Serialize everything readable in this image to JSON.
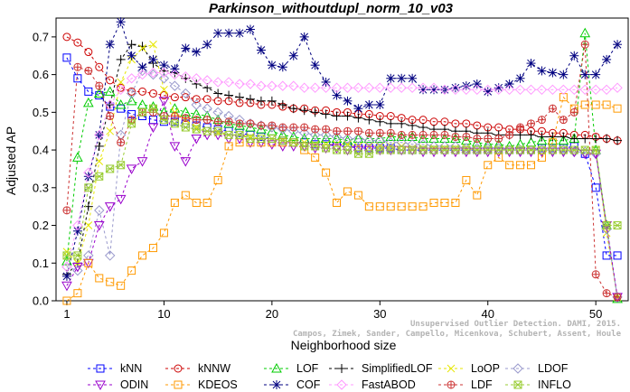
{
  "chart_data": {
    "type": "line",
    "title": "Parkinson_withoutdupl_norm_10_v03",
    "xlabel": "Neighborhood size",
    "ylabel": "Adjusted AP",
    "xlim": [
      0,
      53
    ],
    "ylim": [
      0,
      0.75
    ],
    "xticks": [
      1,
      10,
      20,
      30,
      40,
      50
    ],
    "yticks": [
      0.0,
      0.1,
      0.2,
      0.3,
      0.4,
      0.5,
      0.6,
      0.7
    ],
    "grid": false,
    "legend_position": "bottom",
    "x": [
      1,
      2,
      3,
      4,
      5,
      6,
      7,
      8,
      9,
      10,
      11,
      12,
      13,
      14,
      15,
      16,
      17,
      18,
      19,
      20,
      21,
      22,
      23,
      24,
      25,
      26,
      27,
      28,
      29,
      30,
      31,
      32,
      33,
      34,
      35,
      36,
      37,
      38,
      39,
      40,
      41,
      42,
      43,
      44,
      45,
      46,
      47,
      48,
      49,
      50,
      51,
      52
    ],
    "series": [
      {
        "name": "kNN",
        "color": "#0000ff",
        "marker": "square",
        "values": [
          0.645,
          0.59,
          0.555,
          0.545,
          0.515,
          0.51,
          0.495,
          0.49,
          0.48,
          0.475,
          0.475,
          0.47,
          0.465,
          0.46,
          0.455,
          0.45,
          0.445,
          0.44,
          0.435,
          0.43,
          0.425,
          0.42,
          0.42,
          0.415,
          0.415,
          0.41,
          0.41,
          0.405,
          0.405,
          0.405,
          0.405,
          0.4,
          0.4,
          0.4,
          0.4,
          0.4,
          0.4,
          0.4,
          0.4,
          0.4,
          0.4,
          0.4,
          0.4,
          0.4,
          0.405,
          0.405,
          0.405,
          0.41,
          0.39,
          0.3,
          0.12,
          0.12
        ]
      },
      {
        "name": "kNNW",
        "color": "#cc0000",
        "marker": "circle",
        "values": [
          0.7,
          0.685,
          0.66,
          0.62,
          0.585,
          0.565,
          0.555,
          0.555,
          0.55,
          0.545,
          0.54,
          0.54,
          0.535,
          0.535,
          0.53,
          0.53,
          0.525,
          0.525,
          0.52,
          0.52,
          0.515,
          0.51,
          0.51,
          0.505,
          0.505,
          0.5,
          0.5,
          0.495,
          0.495,
          0.49,
          0.49,
          0.485,
          0.48,
          0.48,
          0.475,
          0.475,
          0.47,
          0.47,
          0.465,
          0.46,
          0.46,
          0.455,
          0.455,
          0.45,
          0.45,
          0.445,
          0.445,
          0.44,
          0.44,
          0.435,
          0.43,
          0.425
        ]
      },
      {
        "name": "LOF",
        "color": "#00cc00",
        "marker": "triangle-up",
        "values": [
          0.105,
          0.38,
          0.525,
          0.55,
          0.555,
          0.52,
          0.53,
          0.52,
          0.515,
          0.5,
          0.51,
          0.5,
          0.495,
          0.49,
          0.48,
          0.47,
          0.465,
          0.46,
          0.455,
          0.45,
          0.44,
          0.435,
          0.43,
          0.43,
          0.43,
          0.43,
          0.425,
          0.43,
          0.43,
          0.43,
          0.435,
          0.435,
          0.435,
          0.43,
          0.43,
          0.43,
          0.43,
          0.425,
          0.42,
          0.415,
          0.415,
          0.41,
          0.415,
          0.42,
          0.425,
          0.425,
          0.425,
          0.43,
          0.71,
          0.4,
          0.2,
          0.005
        ]
      },
      {
        "name": "SimplifiedLOF",
        "color": "#000000",
        "marker": "plus",
        "values": [
          0.07,
          0.1,
          0.25,
          0.41,
          0.52,
          0.64,
          0.68,
          0.675,
          0.63,
          0.61,
          0.605,
          0.59,
          0.575,
          0.565,
          0.55,
          0.545,
          0.54,
          0.535,
          0.53,
          0.53,
          0.52,
          0.51,
          0.505,
          0.5,
          0.495,
          0.49,
          0.49,
          0.485,
          0.48,
          0.475,
          0.47,
          0.47,
          0.465,
          0.46,
          0.455,
          0.455,
          0.45,
          0.45,
          0.445,
          0.445,
          0.44,
          0.44,
          0.44,
          0.44,
          0.435,
          0.435,
          0.435,
          0.43,
          0.43,
          0.43,
          0.43,
          0.425
        ]
      },
      {
        "name": "LoOP",
        "color": "#e6e600",
        "marker": "x",
        "values": [
          0.13,
          0.1,
          0.2,
          0.37,
          0.45,
          0.58,
          0.64,
          0.67,
          0.68,
          0.56,
          0.5,
          0.48,
          0.46,
          0.45,
          0.445,
          0.44,
          0.44,
          0.435,
          0.43,
          0.43,
          0.425,
          0.42,
          0.42,
          0.415,
          0.415,
          0.415,
          0.415,
          0.41,
          0.41,
          0.41,
          0.41,
          0.41,
          0.405,
          0.405,
          0.405,
          0.405,
          0.405,
          0.405,
          0.4,
          0.4,
          0.4,
          0.4,
          0.4,
          0.4,
          0.4,
          0.4,
          0.4,
          0.4,
          0.4,
          0.4,
          0.18,
          0.01
        ]
      },
      {
        "name": "LDOF",
        "color": "#9999cc",
        "marker": "diamond",
        "values": [
          0.09,
          0.08,
          0.12,
          0.24,
          0.12,
          0.44,
          0.55,
          0.61,
          0.6,
          0.59,
          0.57,
          0.55,
          0.52,
          0.51,
          0.5,
          0.49,
          0.48,
          0.47,
          0.465,
          0.46,
          0.455,
          0.45,
          0.445,
          0.44,
          0.44,
          0.435,
          0.43,
          0.43,
          0.425,
          0.425,
          0.42,
          0.42,
          0.415,
          0.415,
          0.41,
          0.41,
          0.41,
          0.405,
          0.405,
          0.405,
          0.405,
          0.4,
          0.4,
          0.4,
          0.4,
          0.4,
          0.4,
          0.395,
          0.395,
          0.39,
          0.19,
          0.01
        ]
      },
      {
        "name": "ODIN",
        "color": "#9900cc",
        "marker": "triangle-down",
        "values": [
          0.04,
          0.09,
          0.1,
          0.2,
          0.25,
          0.27,
          0.35,
          0.37,
          0.46,
          0.53,
          0.41,
          0.37,
          0.43,
          0.44,
          0.44,
          0.43,
          0.43,
          0.42,
          0.42,
          0.415,
          0.41,
          0.41,
          0.41,
          0.405,
          0.405,
          0.405,
          0.4,
          0.4,
          0.4,
          0.4,
          0.4,
          0.4,
          0.4,
          0.395,
          0.395,
          0.395,
          0.395,
          0.395,
          0.395,
          0.395,
          0.395,
          0.395,
          0.395,
          0.395,
          0.395,
          0.395,
          0.395,
          0.395,
          0.39,
          0.39,
          0.2,
          0.01
        ]
      },
      {
        "name": "KDEOS",
        "color": "#ff9900",
        "marker": "square",
        "values": [
          0.0,
          0.02,
          0.1,
          0.06,
          0.05,
          0.04,
          0.08,
          0.12,
          0.14,
          0.18,
          0.26,
          0.28,
          0.26,
          0.26,
          0.32,
          0.41,
          0.42,
          0.42,
          0.42,
          0.42,
          0.42,
          0.42,
          0.4,
          0.38,
          0.34,
          0.26,
          0.29,
          0.28,
          0.25,
          0.25,
          0.25,
          0.25,
          0.25,
          0.25,
          0.26,
          0.26,
          0.26,
          0.32,
          0.28,
          0.36,
          0.38,
          0.36,
          0.36,
          0.36,
          0.38,
          0.42,
          0.54,
          0.51,
          0.52,
          0.52,
          0.52,
          0.51
        ]
      },
      {
        "name": "COF",
        "color": "#000080",
        "marker": "asterisk",
        "values": [
          0.065,
          0.185,
          0.33,
          0.44,
          0.68,
          0.74,
          0.65,
          0.62,
          0.64,
          0.625,
          0.615,
          0.67,
          0.66,
          0.68,
          0.71,
          0.71,
          0.71,
          0.72,
          0.665,
          0.625,
          0.62,
          0.65,
          0.7,
          0.625,
          0.58,
          0.545,
          0.53,
          0.51,
          0.52,
          0.52,
          0.59,
          0.59,
          0.59,
          0.56,
          0.56,
          0.56,
          0.565,
          0.57,
          0.575,
          0.555,
          0.565,
          0.575,
          0.59,
          0.63,
          0.61,
          0.605,
          0.6,
          0.65,
          0.6,
          0.6,
          0.64,
          0.68
        ]
      },
      {
        "name": "FastABOD",
        "color": "#ff99ff",
        "marker": "diamond",
        "values": [
          0.09,
          0.2,
          0.34,
          0.44,
          0.52,
          0.56,
          0.59,
          0.6,
          0.605,
          0.605,
          0.6,
          0.595,
          0.59,
          0.585,
          0.58,
          0.58,
          0.575,
          0.575,
          0.57,
          0.57,
          0.57,
          0.57,
          0.565,
          0.565,
          0.565,
          0.565,
          0.565,
          0.565,
          0.565,
          0.565,
          0.565,
          0.565,
          0.565,
          0.565,
          0.565,
          0.56,
          0.56,
          0.56,
          0.56,
          0.56,
          0.56,
          0.56,
          0.56,
          0.56,
          0.56,
          0.56,
          0.56,
          0.56,
          0.56,
          0.56,
          0.56,
          0.565
        ]
      },
      {
        "name": "LDF",
        "color": "#cc3333",
        "marker": "circle-plus",
        "values": [
          0.24,
          0.62,
          0.61,
          0.57,
          0.49,
          0.42,
          0.48,
          0.5,
          0.5,
          0.49,
          0.49,
          0.485,
          0.48,
          0.48,
          0.475,
          0.475,
          0.47,
          0.47,
          0.465,
          0.465,
          0.46,
          0.46,
          0.46,
          0.455,
          0.455,
          0.45,
          0.45,
          0.45,
          0.445,
          0.445,
          0.445,
          0.44,
          0.44,
          0.44,
          0.44,
          0.44,
          0.435,
          0.435,
          0.43,
          0.43,
          0.43,
          0.44,
          0.46,
          0.47,
          0.48,
          0.51,
          0.48,
          0.5,
          0.68,
          0.07,
          0.02,
          0.01
        ]
      },
      {
        "name": "INFLO",
        "color": "#99cc33",
        "marker": "star-box",
        "values": [
          0.12,
          0.12,
          0.3,
          0.33,
          0.35,
          0.36,
          0.47,
          0.5,
          0.51,
          0.48,
          0.47,
          0.46,
          0.455,
          0.45,
          0.45,
          0.44,
          0.44,
          0.43,
          0.43,
          0.43,
          0.425,
          0.42,
          0.41,
          0.41,
          0.405,
          0.4,
          0.4,
          0.39,
          0.39,
          0.4,
          0.4,
          0.4,
          0.4,
          0.4,
          0.4,
          0.4,
          0.4,
          0.4,
          0.4,
          0.4,
          0.4,
          0.4,
          0.4,
          0.4,
          0.4,
          0.4,
          0.4,
          0.4,
          0.4,
          0.4,
          0.2,
          0.2
        ]
      }
    ]
  },
  "watermark": {
    "line1": "Unsupervised Outlier Detection. DAMI, 2015.",
    "line2": "Campos, Zimek, Sander, Campello, Micenkova, Schubert, Assent, Houle"
  }
}
